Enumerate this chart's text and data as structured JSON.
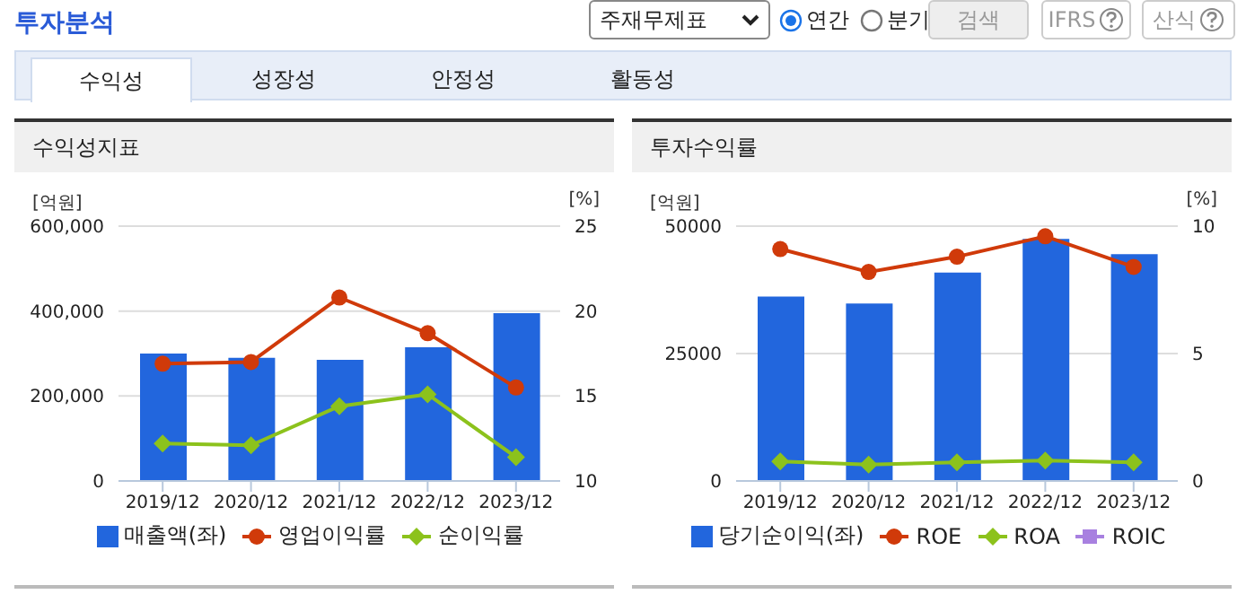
{
  "chart_data": [
    {
      "type": "bar",
      "title": "수익성지표",
      "ylabel": "[억원]",
      "y2label": "[%]",
      "annotations": [
        "투자분석",
        "주재무제표",
        "연간",
        "분기",
        "검색",
        "IFRS",
        "산식",
        "수익성",
        "성장성",
        "안정성",
        "활동성"
      ],
      "categories": [
        "2019/12",
        "2020/12",
        "2021/12",
        "2022/12",
        "2023/12"
      ],
      "series": [
        {
          "name": "매출액(좌)",
          "color": "#2266dd",
          "values": [
            300000,
            290000,
            285000,
            315000,
            395000
          ]
        },
        {
          "name": "영업이익률",
          "type": "line",
          "axis": "y2",
          "color": "#d03a0a",
          "marker": "circle",
          "values": [
            16.9,
            17.0,
            20.8,
            18.7,
            15.5
          ]
        },
        {
          "name": "순이익률",
          "type": "line",
          "axis": "y2",
          "color": "#8cc21c",
          "marker": "diamond",
          "values": [
            12.2,
            12.1,
            14.4,
            15.1,
            11.4
          ]
        }
      ],
      "ylim": [
        0,
        600000
      ],
      "yticks": [
        0,
        {
          "value": 200000,
          "label": "200,000"
        },
        {
          "value": 400000,
          "label": "400,000"
        },
        {
          "value": 600000,
          "label": "600,000"
        }
      ],
      "y2lim": [
        10,
        25
      ],
      "y2ticks": [
        10,
        15,
        20,
        25
      ],
      "grid": "y",
      "legend": "bottom"
    },
    {
      "type": "bar",
      "title": "투자수익률",
      "ylabel": "[억원]",
      "y2label": "[%]",
      "categories": [
        "2019/12",
        "2020/12",
        "2021/12",
        "2022/12",
        "2023/12"
      ],
      "series": [
        {
          "name": "당기순이익(좌)",
          "color": "#2266dd",
          "values": [
            36200,
            34800,
            40900,
            47500,
            44500
          ]
        },
        {
          "name": "ROE",
          "type": "line",
          "axis": "y2",
          "color": "#d03a0a",
          "marker": "circle",
          "values": [
            9.1,
            8.2,
            8.8,
            9.6,
            8.4
          ]
        },
        {
          "name": "ROA",
          "type": "line",
          "axis": "y2",
          "color": "#8cc21c",
          "marker": "diamond",
          "values": [
            0.77,
            0.64,
            0.73,
            0.8,
            0.73
          ]
        },
        {
          "name": "ROIC",
          "type": "line",
          "axis": "y2",
          "color": "#a880e0",
          "marker": "square",
          "values": [
            null,
            null,
            null,
            null,
            null
          ]
        }
      ],
      "ylim": [
        0,
        50000
      ],
      "yticks": [
        0,
        25000,
        50000
      ],
      "y2lim": [
        0,
        10
      ],
      "y2ticks": [
        0,
        5,
        10
      ],
      "grid": "y",
      "legend": "bottom"
    }
  ]
}
